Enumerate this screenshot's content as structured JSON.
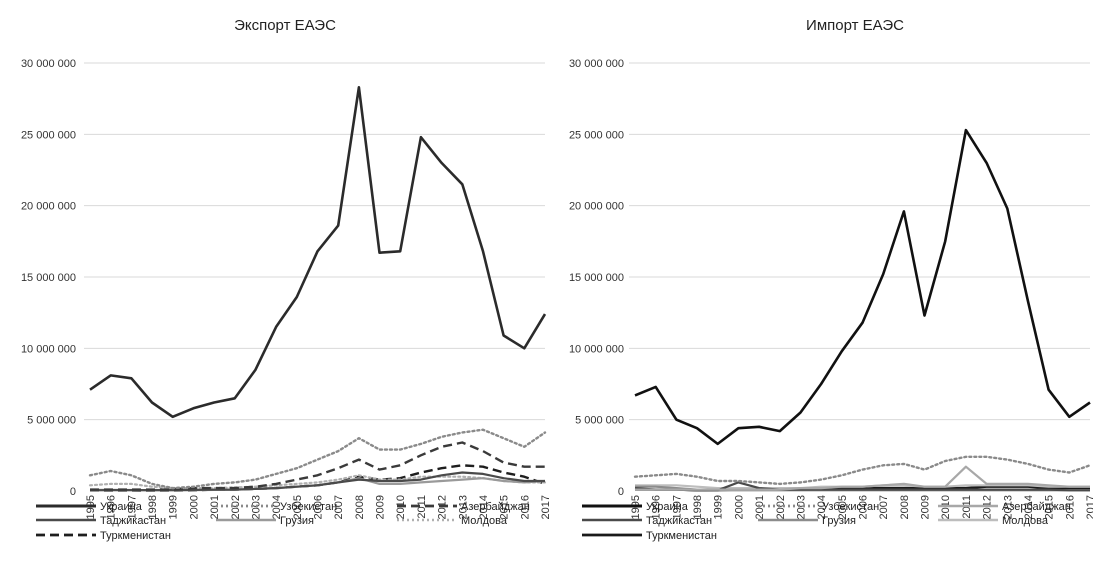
{
  "chart_data": [
    {
      "type": "line",
      "title": "Экспорт ЕАЭС",
      "xlabel": "",
      "ylabel": "",
      "ylim": [
        0,
        30000000
      ],
      "yticks": [
        "0",
        "5 000 000",
        "10 000 000",
        "15 000 000",
        "20 000 000",
        "25 000 000",
        "30 000 000"
      ],
      "grid": true,
      "legend": "bottom",
      "categories": [
        "1995",
        "1996",
        "1997",
        "1998",
        "1999",
        "2000",
        "2001",
        "2002",
        "2003",
        "2004",
        "2005",
        "2006",
        "2007",
        "2008",
        "2009",
        "2010",
        "2011",
        "2012",
        "2013",
        "2014",
        "2015",
        "2016",
        "2017"
      ],
      "series": [
        {
          "name": "Украина",
          "style": "solid",
          "color": "#2b2b2b",
          "width": 2.6,
          "values": [
            7100000,
            8100000,
            7900000,
            6200000,
            5200000,
            5800000,
            6200000,
            6500000,
            8500000,
            11500000,
            13600000,
            16800000,
            18600000,
            28300000,
            16700000,
            16800000,
            24800000,
            23000000,
            21500000,
            16800000,
            10900000,
            10000000,
            12400000
          ]
        },
        {
          "name": "Узбекистан",
          "style": "dot",
          "color": "#8a8a8a",
          "width": 2.4,
          "values": [
            1100000,
            1400000,
            1100000,
            500000,
            200000,
            300000,
            500000,
            600000,
            800000,
            1200000,
            1600000,
            2200000,
            2800000,
            3700000,
            2900000,
            2900000,
            3300000,
            3800000,
            4100000,
            4300000,
            3700000,
            3100000,
            4100000
          ]
        },
        {
          "name": "Азербайджан",
          "style": "dash",
          "color": "#3a3a3a",
          "width": 2.4,
          "values": [
            100000,
            100000,
            100000,
            100000,
            100000,
            200000,
            200000,
            200000,
            300000,
            500000,
            800000,
            1100000,
            1600000,
            2200000,
            1500000,
            1800000,
            2500000,
            3100000,
            3400000,
            2800000,
            2000000,
            1700000,
            1700000
          ]
        },
        {
          "name": "Таджикастан",
          "style": "solid",
          "color": "#4a4a4a",
          "width": 2.2,
          "values": [
            50000,
            60000,
            60000,
            60000,
            70000,
            80000,
            90000,
            100000,
            150000,
            200000,
            300000,
            400000,
            600000,
            800000,
            700000,
            700000,
            800000,
            1100000,
            1300000,
            1200000,
            900000,
            700000,
            700000
          ]
        },
        {
          "name": "Грузия",
          "style": "solid",
          "color": "#9a9a9a",
          "width": 2.2,
          "values": [
            80000,
            80000,
            70000,
            50000,
            40000,
            60000,
            80000,
            100000,
            150000,
            200000,
            300000,
            400000,
            600000,
            900000,
            500000,
            500000,
            600000,
            700000,
            800000,
            900000,
            700000,
            600000,
            700000
          ]
        },
        {
          "name": "Молдова",
          "style": "dot",
          "color": "#b0b0b0",
          "width": 2.2,
          "values": [
            400000,
            500000,
            500000,
            300000,
            200000,
            200000,
            200000,
            250000,
            300000,
            400000,
            500000,
            600000,
            800000,
            1100000,
            800000,
            800000,
            1000000,
            1000000,
            1000000,
            900000,
            700000,
            600000,
            600000
          ]
        },
        {
          "name": "Туркменистан",
          "style": "dash",
          "color": "#1e1e1e",
          "width": 2.4,
          "values": [
            50000,
            40000,
            40000,
            30000,
            30000,
            50000,
            100000,
            100000,
            150000,
            200000,
            300000,
            400000,
            600000,
            1000000,
            800000,
            900000,
            1300000,
            1600000,
            1800000,
            1700000,
            1300000,
            1000000,
            500000
          ]
        }
      ]
    },
    {
      "type": "line",
      "title": "Импорт ЕАЭС",
      "xlabel": "",
      "ylabel": "",
      "ylim": [
        0,
        30000000
      ],
      "yticks": [
        "0",
        "5 000 000",
        "10 000 000",
        "15 000 000",
        "20 000 000",
        "25 000 000",
        "30 000 000"
      ],
      "grid": true,
      "legend": "bottom",
      "categories": [
        "1995",
        "1996",
        "1997",
        "1998",
        "1999",
        "2000",
        "2001",
        "2002",
        "2003",
        "2004",
        "2005",
        "2006",
        "2007",
        "2008",
        "2009",
        "2010",
        "2011",
        "2012",
        "2013",
        "2014",
        "2015",
        "2016",
        "2017"
      ],
      "series": [
        {
          "name": "Украина",
          "style": "solid",
          "color": "#111111",
          "width": 2.6,
          "values": [
            6700000,
            7300000,
            5000000,
            4400000,
            3300000,
            4400000,
            4500000,
            4200000,
            5500000,
            7500000,
            9800000,
            11800000,
            15200000,
            19600000,
            12300000,
            17500000,
            25300000,
            23000000,
            19800000,
            13300000,
            7100000,
            5200000,
            6200000
          ]
        },
        {
          "name": "Узбекистан",
          "style": "dot",
          "color": "#8a8a8a",
          "width": 2.4,
          "values": [
            1000000,
            1100000,
            1200000,
            1000000,
            700000,
            700000,
            600000,
            500000,
            600000,
            800000,
            1100000,
            1500000,
            1800000,
            1900000,
            1500000,
            2100000,
            2400000,
            2400000,
            2200000,
            1900000,
            1500000,
            1300000,
            1800000
          ]
        },
        {
          "name": "Азербайджан",
          "style": "solid",
          "color": "#a8a8a8",
          "width": 2.2,
          "values": [
            100000,
            100000,
            100000,
            100000,
            100000,
            100000,
            100000,
            100000,
            200000,
            200000,
            300000,
            300000,
            400000,
            500000,
            300000,
            300000,
            1700000,
            500000,
            500000,
            500000,
            400000,
            300000,
            300000
          ]
        },
        {
          "name": "Таджикастан",
          "style": "solid",
          "color": "#4a4a4a",
          "width": 2.2,
          "values": [
            200000,
            100000,
            100000,
            50000,
            50000,
            600000,
            200000,
            100000,
            100000,
            100000,
            100000,
            100000,
            100000,
            100000,
            100000,
            100000,
            100000,
            100000,
            100000,
            100000,
            100000,
            50000,
            50000
          ]
        },
        {
          "name": "Грузия",
          "style": "solid",
          "color": "#8c8c8c",
          "width": 2.2,
          "values": [
            300000,
            300000,
            200000,
            100000,
            50000,
            50000,
            50000,
            50000,
            50000,
            50000,
            50000,
            50000,
            50000,
            50000,
            50000,
            50000,
            50000,
            50000,
            50000,
            50000,
            50000,
            50000,
            50000
          ]
        },
        {
          "name": "Молдова",
          "style": "solid",
          "color": "#bdbdbd",
          "width": 2.2,
          "values": [
            400000,
            400000,
            400000,
            300000,
            200000,
            200000,
            200000,
            200000,
            200000,
            300000,
            300000,
            300000,
            400000,
            400000,
            300000,
            300000,
            400000,
            400000,
            400000,
            400000,
            300000,
            300000,
            300000
          ]
        },
        {
          "name": "Туркменистан",
          "style": "solid",
          "color": "#1a1a1a",
          "width": 2.4,
          "values": [
            100000,
            100000,
            100000,
            50000,
            50000,
            100000,
            100000,
            100000,
            100000,
            100000,
            200000,
            200000,
            200000,
            200000,
            200000,
            200000,
            200000,
            300000,
            300000,
            300000,
            200000,
            200000,
            200000
          ]
        }
      ]
    }
  ]
}
